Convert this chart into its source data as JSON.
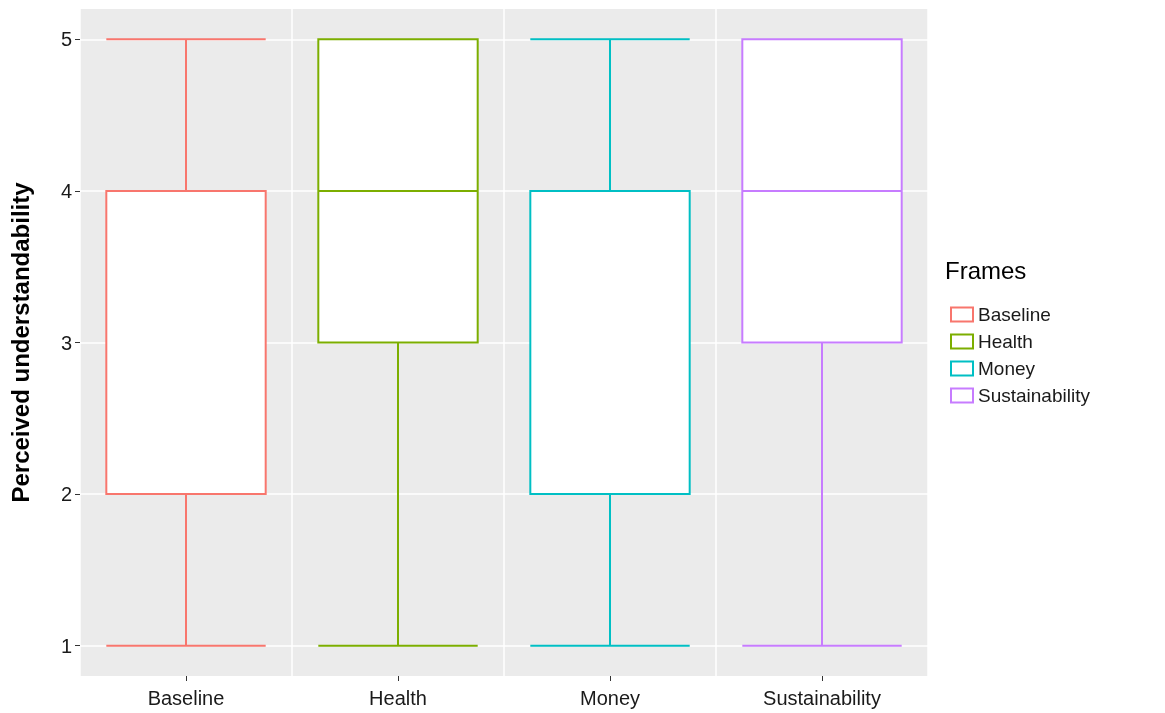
{
  "chart_data": {
    "type": "box",
    "ylabel": "Perceived understandability",
    "legend_title": "Frames",
    "categories": [
      "Baseline",
      "Health",
      "Money",
      "Sustainability"
    ],
    "series": [
      {
        "name": "Baseline",
        "color": "#f8766d",
        "boxes": [
          {
            "low": 1,
            "q1": 2,
            "median": 4,
            "q3": 4,
            "high": 5
          },
          null,
          null,
          null
        ]
      },
      {
        "name": "Health",
        "color": "#7cae00",
        "boxes": [
          null,
          {
            "low": 1,
            "q1": 3,
            "median": 4,
            "q3": 5,
            "high": 5
          },
          null,
          null
        ]
      },
      {
        "name": "Money",
        "color": "#00bfc4",
        "boxes": [
          null,
          null,
          {
            "low": 1,
            "q1": 2,
            "median": 4,
            "q3": 4,
            "high": 5
          },
          null
        ]
      },
      {
        "name": "Sustainability",
        "color": "#c77cff",
        "boxes": [
          null,
          null,
          null,
          {
            "low": 1,
            "q1": 3,
            "median": 4,
            "q3": 5,
            "high": 5
          }
        ]
      }
    ],
    "ylim": [
      0.8,
      5.2
    ],
    "yticks": [
      1,
      2,
      3,
      4,
      5
    ],
    "grid": true,
    "legend": "right"
  }
}
